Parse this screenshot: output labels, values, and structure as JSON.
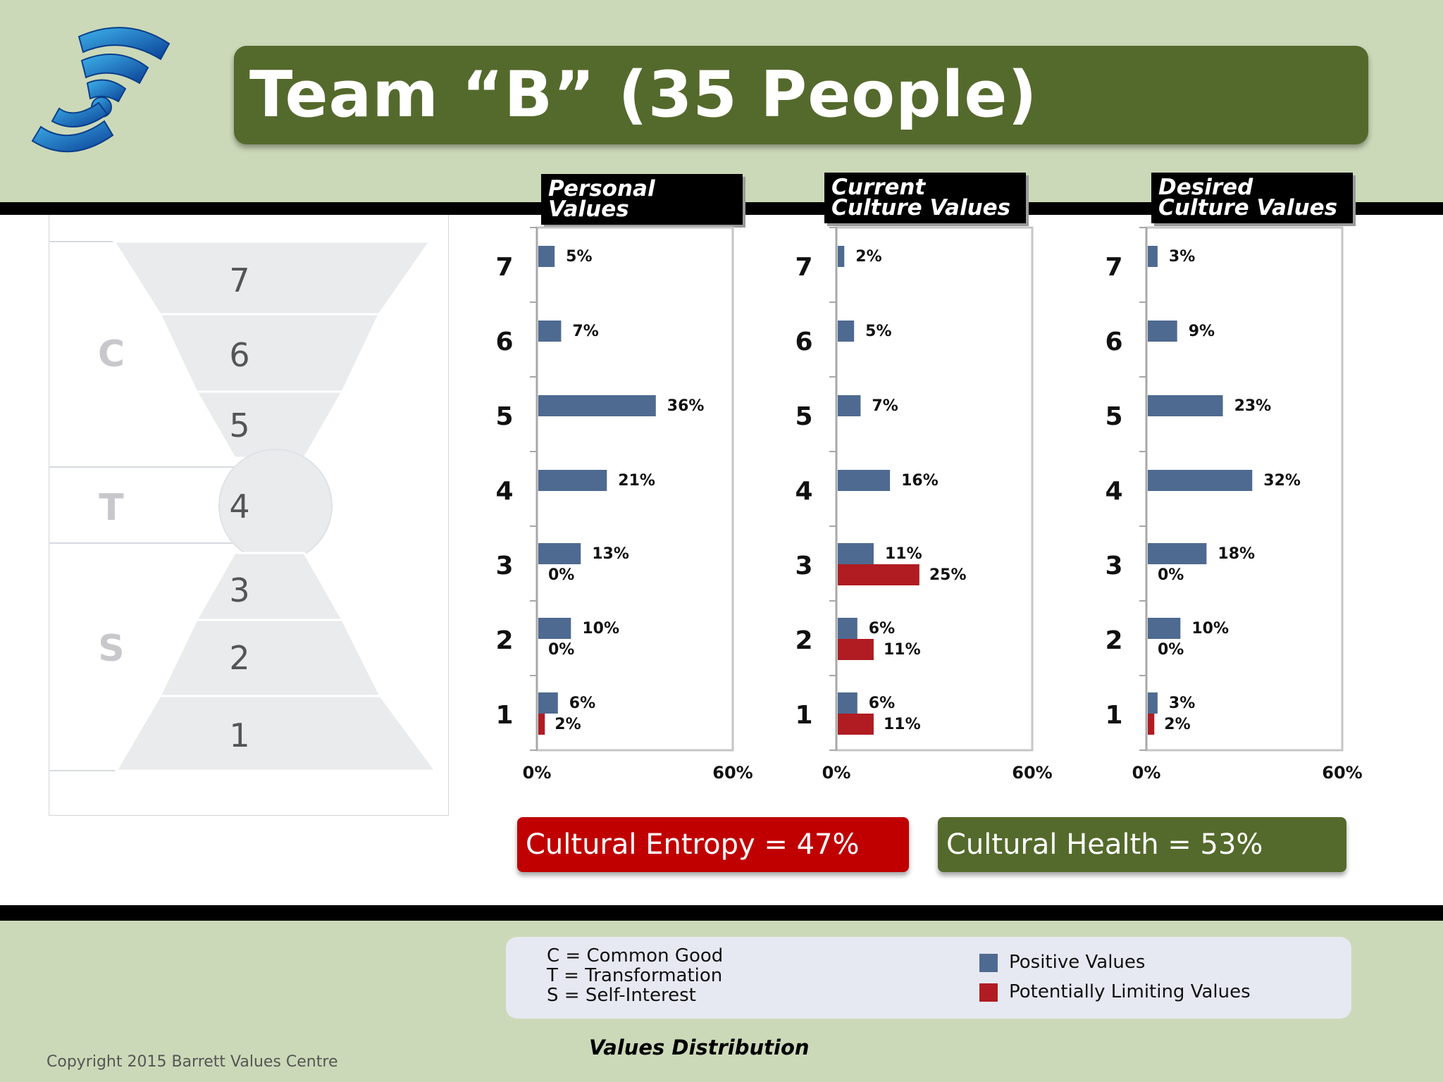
{
  "title": "Team “B” (35 People)",
  "colors": {
    "positive": "#4e6a91",
    "limiting": "#b01c22",
    "entropy": "#c00000",
    "health": "#546a2c",
    "title_bg": "#546a2c"
  },
  "logo": {
    "icon": "wifi-signal-logo-icon"
  },
  "levels_diagram": {
    "levels": [
      "7",
      "6",
      "5",
      "4",
      "3",
      "2",
      "1"
    ],
    "groups": [
      {
        "letter": "C",
        "levels": [
          "7",
          "6",
          "5"
        ]
      },
      {
        "letter": "T",
        "levels": [
          "4"
        ]
      },
      {
        "letter": "S",
        "levels": [
          "3",
          "2",
          "1"
        ]
      }
    ]
  },
  "chart_data": [
    {
      "type": "bar",
      "title": "Personal Values",
      "title_lines": [
        "Personal",
        "Values"
      ],
      "categories": [
        "7",
        "6",
        "5",
        "4",
        "3",
        "2",
        "1"
      ],
      "xlim": [
        0,
        60
      ],
      "xtick_labels": [
        "0%",
        "60%"
      ],
      "series": [
        {
          "name": "Positive Values",
          "values": [
            5,
            7,
            36,
            21,
            13,
            10,
            6
          ],
          "labels": [
            "5%",
            "7%",
            "36%",
            "21%",
            "13%",
            "10%",
            "6%"
          ]
        },
        {
          "name": "Potentially Limiting Values",
          "values": [
            null,
            null,
            null,
            null,
            0,
            0,
            2
          ],
          "labels": [
            "",
            "",
            "",
            "",
            "0%",
            "0%",
            "2%"
          ]
        }
      ]
    },
    {
      "type": "bar",
      "title": "Current Culture Values",
      "title_lines": [
        "Current",
        "Culture Values"
      ],
      "categories": [
        "7",
        "6",
        "5",
        "4",
        "3",
        "2",
        "1"
      ],
      "xlim": [
        0,
        60
      ],
      "xtick_labels": [
        "0%",
        "60%"
      ],
      "series": [
        {
          "name": "Positive Values",
          "values": [
            2,
            5,
            7,
            16,
            11,
            6,
            6
          ],
          "labels": [
            "2%",
            "5%",
            "7%",
            "16%",
            "11%",
            "6%",
            "6%"
          ]
        },
        {
          "name": "Potentially Limiting Values",
          "values": [
            null,
            null,
            null,
            null,
            25,
            11,
            11
          ],
          "labels": [
            "",
            "",
            "",
            "",
            "25%",
            "11%",
            "11%"
          ]
        }
      ]
    },
    {
      "type": "bar",
      "title": "Desired Culture Values",
      "title_lines": [
        "Desired",
        "Culture Values"
      ],
      "categories": [
        "7",
        "6",
        "5",
        "4",
        "3",
        "2",
        "1"
      ],
      "xlim": [
        0,
        60
      ],
      "xtick_labels": [
        "0%",
        "60%"
      ],
      "series": [
        {
          "name": "Positive Values",
          "values": [
            3,
            9,
            23,
            32,
            18,
            10,
            3
          ],
          "labels": [
            "3%",
            "9%",
            "23%",
            "32%",
            "18%",
            "10%",
            "3%"
          ]
        },
        {
          "name": "Potentially Limiting Values",
          "values": [
            null,
            null,
            null,
            null,
            0,
            0,
            2
          ],
          "labels": [
            "",
            "",
            "",
            "",
            "0%",
            "0%",
            "2%"
          ]
        }
      ]
    }
  ],
  "entropy": {
    "label": "Cultural Entropy = 47%"
  },
  "health": {
    "label": "Cultural Health = 53%"
  },
  "legend": {
    "key_lines": [
      "C = Common Good",
      "T = Transformation",
      "S = Self-Interest"
    ],
    "positive_label": "Positive Values",
    "limiting_label": "Potentially Limiting Values"
  },
  "footer": {
    "title": "Values Distribution",
    "copyright": "Copyright 2015 Barrett Values Centre"
  }
}
